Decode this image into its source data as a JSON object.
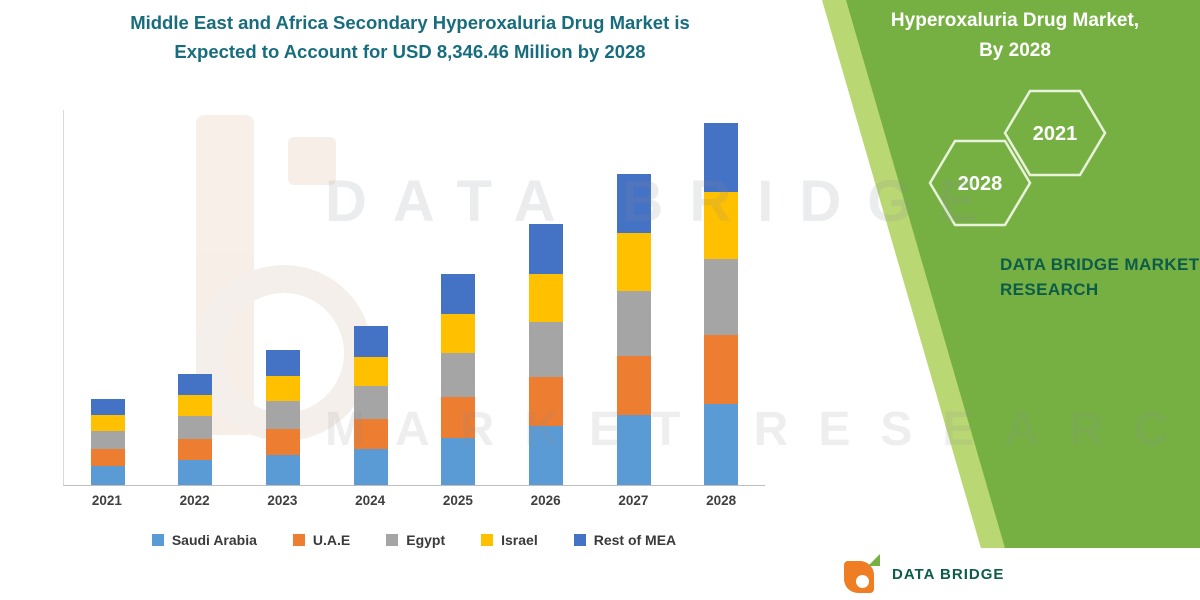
{
  "title": {
    "line1": "Middle East and Africa Secondary Hyperoxaluria Drug Market is",
    "line2": "Expected to Account for USD 8,346.46 Million by 2028"
  },
  "green_panel": {
    "headline_line1": "Hyperoxaluria Drug Market,",
    "headline_line2": "By 2028",
    "hex_2021_label": "2021",
    "hex_2028_label": "2028",
    "brand_line1": "DATA BRIDGE MARKET",
    "brand_line2": "RESEARCH",
    "colors": {
      "panel_green": "#76b043",
      "edge_stripe_green": "#b9d773",
      "brand_text": "#0d5c49",
      "title_teal": "#176d7d",
      "logo_orange": "#ee7d23"
    }
  },
  "watermark": {
    "line1": "DATA BRIDGE",
    "line2": "MARKET RESEARCH"
  },
  "footer": {
    "brand": "DATA BRIDGE"
  },
  "chart_data": {
    "type": "bar",
    "stacked": true,
    "title": "Middle East and Africa Secondary Hyperoxaluria Drug Market is Expected to Account for USD 8,346.46 Million by 2028",
    "unit": "USD Million",
    "xlabel": "",
    "ylabel": "",
    "ylim": [
      0,
      8400
    ],
    "gridlines": false,
    "legend_position": "bottom",
    "categories": [
      "2021",
      "2022",
      "2023",
      "2024",
      "2025",
      "2026",
      "2027",
      "2028"
    ],
    "series": [
      {
        "name": "Saudi Arabia",
        "color": "#5b9bd5",
        "values": [
          449,
          574,
          699,
          824,
          1096,
          1355,
          1616,
          1878
        ]
      },
      {
        "name": "U.A.E",
        "color": "#ed7d31",
        "values": [
          379,
          485,
          590,
          695,
          925,
          1144,
          1364,
          1586
        ]
      },
      {
        "name": "Egypt",
        "color": "#a5a5a5",
        "values": [
          419,
          536,
          652,
          769,
          1023,
          1264,
          1508,
          1753
        ]
      },
      {
        "name": "Israel",
        "color": "#ffc000",
        "values": [
          369,
          472,
          574,
          677,
          901,
          1114,
          1328,
          1544
        ]
      },
      {
        "name": "Rest of MEA",
        "color": "#4472c4",
        "values": [
          379,
          485,
          590,
          695,
          925,
          1144,
          1364,
          1585.46
        ]
      }
    ],
    "totals_estimated": [
      1995,
      2552,
      3105,
      3660,
      4870,
      6021,
      7180,
      8346.46
    ],
    "labeled_value_2028_total": 8346.46
  }
}
